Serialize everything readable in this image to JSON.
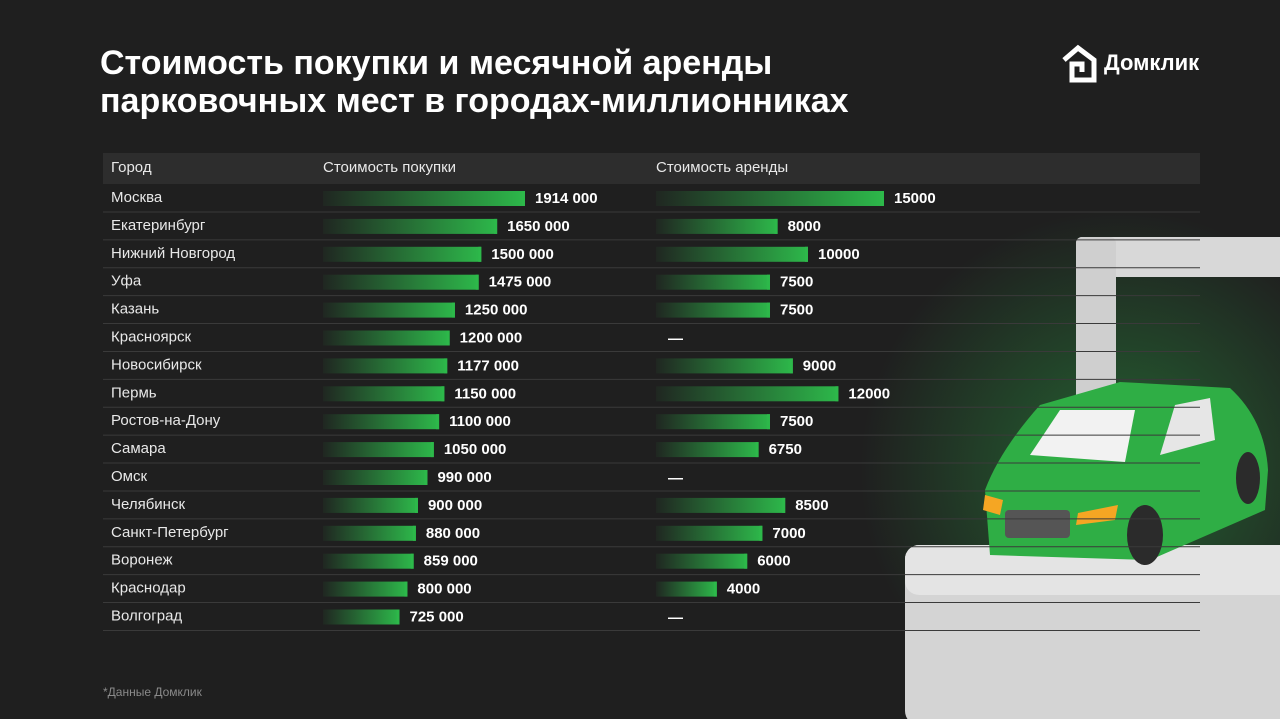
{
  "brand": "Домклик",
  "footnote": "*Данные Домклик",
  "chart_data": {
    "type": "table-bar",
    "title": "Стоимость покупки и месячной аренды парковочных мест в городах-миллионниках",
    "x_label": "Город",
    "categories": [
      "Москва",
      "Екатеринбург",
      "Нижний Новгород",
      "Уфа",
      "Казань",
      "Красноярск",
      "Новосибирск",
      "Пермь",
      "Ростов-на-Дону",
      "Самара",
      "Омск",
      "Челябинск",
      "Санкт-Петербург",
      "Воронеж",
      "Краснодар",
      "Волгоград"
    ],
    "series": [
      {
        "name": "Стоимость покупки",
        "color": "#2db84a",
        "values": [
          1914000,
          1650000,
          1500000,
          1475000,
          1250000,
          1200000,
          1177000,
          1150000,
          1100000,
          1050000,
          990000,
          900000,
          880000,
          859000,
          800000,
          725000
        ],
        "value_labels": [
          "1914 000",
          "1650 000",
          "1500 000",
          "1475 000",
          "1250 000",
          "1200 000",
          "1177 000",
          "1150 000",
          "1100 000",
          "1050 000",
          "990 000",
          "900 000",
          "880 000",
          "859 000",
          "800 000",
          "725 000"
        ]
      },
      {
        "name": "Стоимость аренды",
        "color": "#2db84a",
        "values": [
          15000,
          8000,
          10000,
          7500,
          7500,
          null,
          9000,
          12000,
          7500,
          6750,
          null,
          8500,
          7000,
          6000,
          4000,
          null
        ],
        "value_labels": [
          "15000",
          "8000",
          "10000",
          "7500",
          "7500",
          "—",
          "9000",
          "12000",
          "7500",
          "6750",
          "—",
          "8500",
          "7000",
          "6000",
          "4000",
          "—"
        ]
      }
    ]
  }
}
